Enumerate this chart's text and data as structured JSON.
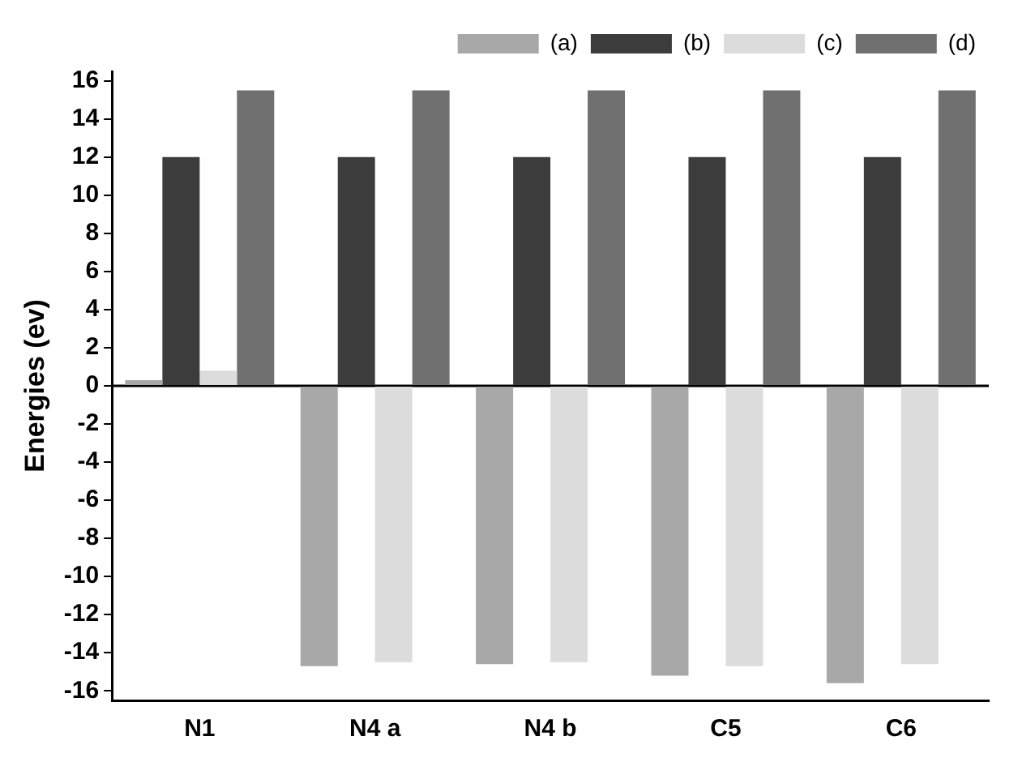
{
  "chart_data": {
    "type": "bar",
    "ylabel": "Energies (ev)",
    "categories": [
      "N1",
      "N4 a",
      "N4 b",
      "C5",
      "C6"
    ],
    "series": [
      {
        "name": "(a)",
        "color": "#a8a8a8",
        "values": [
          0.3,
          -14.7,
          -14.6,
          -15.2,
          -15.6
        ]
      },
      {
        "name": "(b)",
        "color": "#3c3c3c",
        "values": [
          12,
          12,
          12,
          12,
          12
        ]
      },
      {
        "name": "(c)",
        "color": "#dcdcdc",
        "values": [
          0.8,
          -14.5,
          -14.5,
          -14.7,
          -14.6
        ]
      },
      {
        "name": "(d)",
        "color": "#707070",
        "values": [
          15.5,
          15.5,
          15.5,
          15.5,
          15.5
        ]
      }
    ],
    "ylim": [
      -16.5,
      16.5
    ],
    "yticks": [
      -16,
      -14,
      -12,
      -10,
      -8,
      -6,
      -4,
      -2,
      0,
      2,
      4,
      6,
      8,
      10,
      12,
      14,
      16
    ],
    "grid": false,
    "ref_lines": [
      {
        "axis": "y",
        "value": 0,
        "color": "#000000"
      }
    ],
    "legend": "top right"
  }
}
